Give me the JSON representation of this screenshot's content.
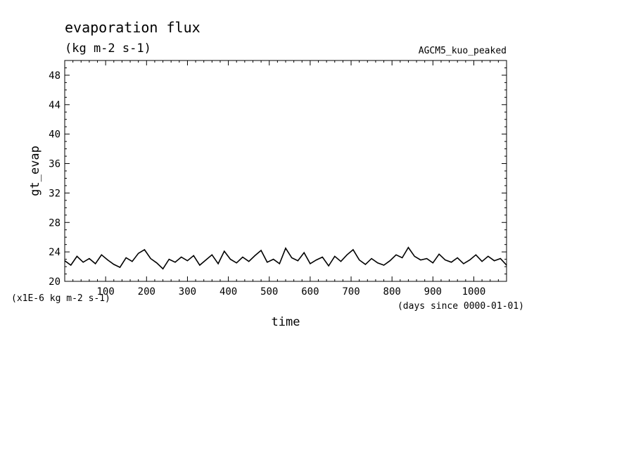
{
  "chart_data": {
    "type": "line",
    "title": "evaporation flux",
    "subtitle": "(kg m-2 s-1)",
    "experiment": "AGCM5_kuo_peaked",
    "ylabel": "gt_evap",
    "yunit_note": "(x1E-6 kg m-2 s-1)",
    "xlabel": "time",
    "xunit_note": "(days since 0000-01-01)",
    "xlim": [
      0,
      1080
    ],
    "ylim": [
      20,
      50
    ],
    "xticks": [
      100,
      200,
      300,
      400,
      500,
      600,
      700,
      800,
      900,
      1000
    ],
    "yticks": [
      20,
      24,
      28,
      32,
      36,
      40,
      44,
      48
    ],
    "grid": false,
    "series": [
      {
        "x": [
          0,
          15,
          30,
          45,
          60,
          75,
          90,
          105,
          120,
          135,
          150,
          165,
          180,
          195,
          210,
          225,
          240,
          255,
          270,
          285,
          300,
          315,
          330,
          345,
          360,
          375,
          390,
          405,
          420,
          435,
          450,
          465,
          480,
          495,
          510,
          525,
          540,
          555,
          570,
          585,
          600,
          615,
          630,
          645,
          660,
          675,
          690,
          705,
          720,
          735,
          750,
          765,
          780,
          795,
          810,
          825,
          840,
          855,
          870,
          885,
          900,
          915,
          930,
          945,
          960,
          975,
          990,
          1005,
          1020,
          1035,
          1050,
          1065,
          1080
        ],
        "y": [
          22.8,
          22.2,
          23.4,
          22.6,
          23.1,
          22.4,
          23.6,
          22.9,
          22.3,
          21.9,
          23.2,
          22.7,
          23.8,
          24.3,
          23.1,
          22.5,
          21.7,
          23.0,
          22.6,
          23.3,
          22.8,
          23.5,
          22.2,
          22.9,
          23.6,
          22.4,
          24.1,
          23.0,
          22.5,
          23.3,
          22.7,
          23.5,
          24.2,
          22.6,
          23.0,
          22.4,
          24.5,
          23.2,
          22.8,
          23.9,
          22.4,
          22.9,
          23.3,
          22.1,
          23.4,
          22.7,
          23.6,
          24.3,
          22.9,
          22.3,
          23.1,
          22.5,
          22.2,
          22.8,
          23.6,
          23.2,
          24.6,
          23.4,
          22.9,
          23.1,
          22.5,
          23.7,
          22.9,
          22.6,
          23.2,
          22.4,
          22.9,
          23.6,
          22.7,
          23.4,
          22.8,
          23.1,
          22.2
        ]
      }
    ]
  }
}
